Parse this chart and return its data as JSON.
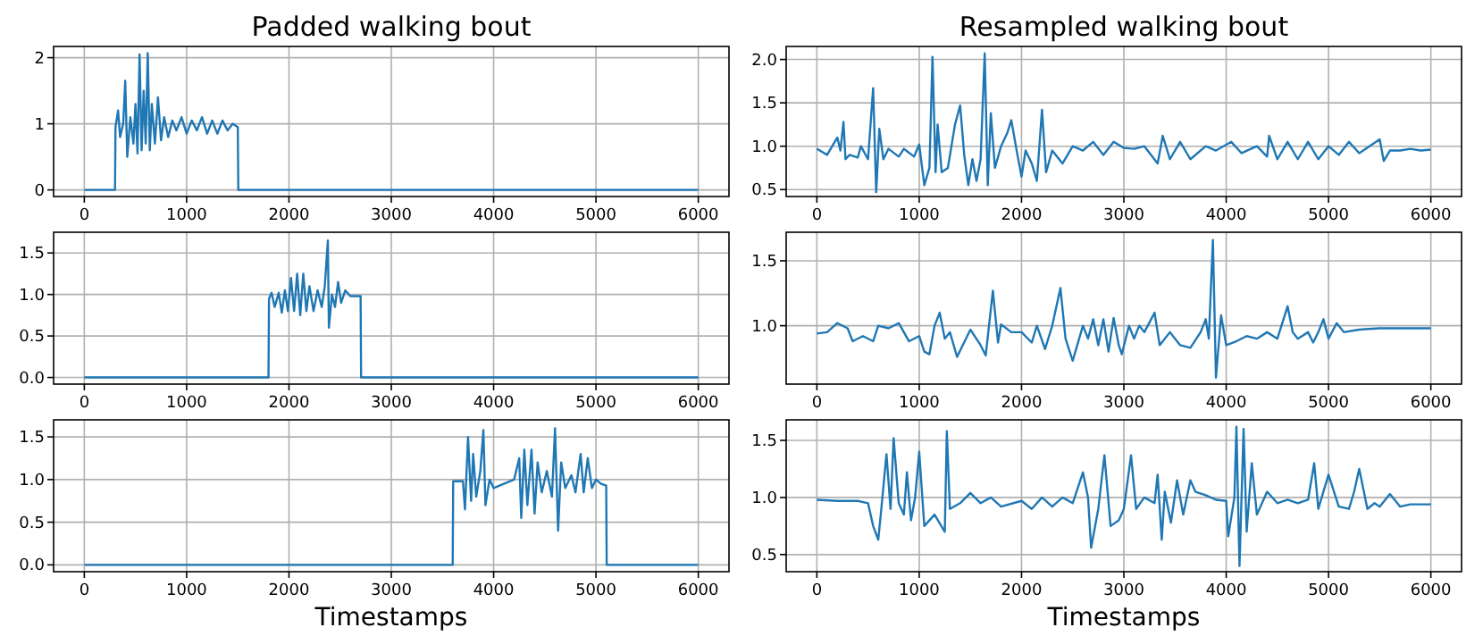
{
  "chart_data": [
    {
      "type": "line",
      "title": "Padded walking bout",
      "color": "#1f77b4",
      "grid": true,
      "xlim": [
        -300,
        6300
      ],
      "xticks": [
        0,
        1000,
        2000,
        3000,
        4000,
        5000,
        6000
      ],
      "ylim": [
        -0.1,
        2.17
      ],
      "yticks": [
        0,
        1,
        2
      ],
      "x": [
        0,
        300,
        305,
        330,
        350,
        380,
        400,
        420,
        450,
        480,
        500,
        520,
        540,
        560,
        580,
        600,
        620,
        640,
        660,
        690,
        720,
        750,
        780,
        820,
        860,
        900,
        950,
        1000,
        1050,
        1100,
        1150,
        1200,
        1250,
        1300,
        1350,
        1400,
        1450,
        1500,
        1505,
        6000
      ],
      "values": [
        0,
        0,
        0.95,
        1.2,
        0.8,
        1.0,
        1.65,
        0.5,
        1.1,
        0.7,
        1.3,
        0.55,
        2.05,
        0.6,
        1.5,
        0.7,
        2.07,
        0.6,
        1.3,
        0.7,
        1.4,
        0.75,
        1.1,
        0.8,
        1.05,
        0.9,
        1.1,
        0.85,
        1.05,
        0.9,
        1.1,
        0.85,
        1.05,
        0.85,
        1.05,
        0.9,
        1.0,
        0.95,
        0,
        0
      ]
    },
    {
      "type": "line",
      "title": "Resampled walking bout",
      "color": "#1f77b4",
      "grid": true,
      "xlim": [
        -300,
        6300
      ],
      "xticks": [
        0,
        1000,
        2000,
        3000,
        4000,
        5000,
        6000
      ],
      "ylim": [
        0.42,
        2.15
      ],
      "yticks": [
        0.5,
        {
          "value": 1,
          "label": "1.0"
        },
        1.5,
        {
          "value": 2,
          "label": "2.0"
        }
      ],
      "x": [
        0,
        100,
        200,
        230,
        260,
        280,
        320,
        400,
        430,
        500,
        550,
        580,
        610,
        650,
        700,
        800,
        850,
        950,
        1000,
        1050,
        1100,
        1130,
        1160,
        1180,
        1220,
        1280,
        1350,
        1400,
        1440,
        1480,
        1520,
        1560,
        1600,
        1640,
        1670,
        1700,
        1740,
        1800,
        1860,
        1900,
        1960,
        2000,
        2040,
        2100,
        2150,
        2200,
        2240,
        2300,
        2400,
        2500,
        2600,
        2700,
        2800,
        2900,
        3000,
        3100,
        3200,
        3330,
        3380,
        3450,
        3550,
        3650,
        3800,
        3900,
        4050,
        4150,
        4300,
        4400,
        4420,
        4500,
        4600,
        4700,
        4800,
        4900,
        5000,
        5100,
        5200,
        5300,
        5400,
        5500,
        5540,
        5600,
        5700,
        5800,
        5900,
        6000
      ],
      "values": [
        0.97,
        0.9,
        1.1,
        0.95,
        1.28,
        0.85,
        0.9,
        0.87,
        1.0,
        0.85,
        1.67,
        0.47,
        1.2,
        0.85,
        0.97,
        0.88,
        0.97,
        0.88,
        1.02,
        0.55,
        0.75,
        2.03,
        0.7,
        1.25,
        0.7,
        0.75,
        1.25,
        1.47,
        0.9,
        0.55,
        0.85,
        0.6,
        0.85,
        2.07,
        0.55,
        1.38,
        0.75,
        1.0,
        1.15,
        1.3,
        0.9,
        0.65,
        0.95,
        0.8,
        0.6,
        1.42,
        0.7,
        0.95,
        0.8,
        1.0,
        0.95,
        1.05,
        0.9,
        1.05,
        0.98,
        0.97,
        1.0,
        0.8,
        1.12,
        0.85,
        1.05,
        0.85,
        1.0,
        0.95,
        1.05,
        0.92,
        1.0,
        0.88,
        1.12,
        0.85,
        1.05,
        0.85,
        1.05,
        0.85,
        1.0,
        0.9,
        1.05,
        0.92,
        1.0,
        1.08,
        0.83,
        0.95,
        0.95,
        0.97,
        0.95,
        0.96
      ]
    },
    {
      "type": "line",
      "color": "#1f77b4",
      "grid": true,
      "xlim": [
        -300,
        6300
      ],
      "xticks": [
        0,
        1000,
        2000,
        3000,
        4000,
        5000,
        6000
      ],
      "ylim": [
        -0.08,
        1.75
      ],
      "yticks": [
        {
          "value": 0,
          "label": "0.0"
        },
        0.5,
        {
          "value": 1,
          "label": "1.0"
        },
        1.5
      ],
      "x": [
        0,
        1800,
        1805,
        1830,
        1860,
        1900,
        1930,
        1960,
        1990,
        2020,
        2050,
        2080,
        2110,
        2140,
        2170,
        2200,
        2240,
        2280,
        2320,
        2350,
        2380,
        2390,
        2420,
        2450,
        2480,
        2510,
        2550,
        2600,
        2700,
        2705,
        6000
      ],
      "values": [
        0,
        0,
        0.95,
        1.02,
        0.85,
        1.02,
        0.78,
        1.05,
        0.8,
        1.2,
        0.8,
        1.25,
        0.75,
        1.25,
        0.8,
        1.1,
        0.8,
        1.05,
        0.85,
        1.1,
        1.65,
        0.6,
        1.0,
        0.85,
        1.15,
        0.9,
        1.05,
        0.98,
        0.98,
        0,
        0
      ]
    },
    {
      "type": "line",
      "color": "#1f77b4",
      "grid": true,
      "xlim": [
        -300,
        6300
      ],
      "xticks": [
        0,
        1000,
        2000,
        3000,
        4000,
        5000,
        6000
      ],
      "ylim": [
        0.55,
        1.72
      ],
      "yticks": [
        {
          "value": 1,
          "label": "1.0"
        },
        1.5
      ],
      "x": [
        0,
        100,
        200,
        300,
        350,
        450,
        550,
        600,
        700,
        800,
        900,
        1000,
        1050,
        1100,
        1150,
        1200,
        1250,
        1300,
        1370,
        1500,
        1600,
        1650,
        1720,
        1770,
        1800,
        1900,
        2000,
        2100,
        2150,
        2230,
        2300,
        2380,
        2430,
        2500,
        2600,
        2650,
        2700,
        2750,
        2800,
        2850,
        2900,
        2950,
        2980,
        3050,
        3100,
        3150,
        3200,
        3300,
        3350,
        3450,
        3550,
        3650,
        3750,
        3800,
        3830,
        3870,
        3900,
        3950,
        4000,
        4100,
        4200,
        4300,
        4400,
        4500,
        4600,
        4650,
        4700,
        4800,
        4850,
        4900,
        4950,
        5000,
        5080,
        5150,
        5300,
        5500,
        5700,
        6000
      ],
      "values": [
        0.94,
        0.95,
        1.02,
        0.98,
        0.88,
        0.92,
        0.88,
        1.0,
        0.98,
        1.02,
        0.88,
        0.92,
        0.8,
        0.78,
        1.0,
        1.1,
        0.9,
        0.95,
        0.76,
        0.97,
        0.85,
        0.77,
        1.27,
        0.87,
        1.01,
        0.95,
        0.95,
        0.87,
        1.0,
        0.82,
        1.0,
        1.29,
        0.9,
        0.73,
        1.0,
        0.9,
        1.05,
        0.85,
        1.05,
        0.8,
        1.06,
        0.85,
        0.78,
        1.0,
        0.9,
        1.0,
        0.95,
        1.1,
        0.85,
        0.95,
        0.85,
        0.83,
        0.95,
        1.05,
        0.9,
        1.66,
        0.6,
        1.08,
        0.85,
        0.88,
        0.92,
        0.9,
        0.95,
        0.9,
        1.15,
        0.95,
        0.9,
        0.95,
        0.87,
        0.95,
        1.05,
        0.9,
        1.02,
        0.95,
        0.97,
        0.98,
        0.98,
        0.98
      ]
    },
    {
      "type": "line",
      "xlabel": "Timestamps",
      "color": "#1f77b4",
      "grid": true,
      "xlim": [
        -300,
        6300
      ],
      "xticks": [
        0,
        1000,
        2000,
        3000,
        4000,
        5000,
        6000
      ],
      "ylim": [
        -0.08,
        1.7
      ],
      "yticks": [
        {
          "value": 0,
          "label": "0.0"
        },
        0.5,
        {
          "value": 1,
          "label": "1.0"
        },
        1.5
      ],
      "x": [
        0,
        3600,
        3605,
        3700,
        3720,
        3750,
        3780,
        3800,
        3830,
        3870,
        3900,
        3920,
        3960,
        4000,
        4100,
        4200,
        4250,
        4270,
        4300,
        4330,
        4370,
        4400,
        4430,
        4470,
        4520,
        4570,
        4600,
        4630,
        4660,
        4700,
        4760,
        4800,
        4850,
        4880,
        4920,
        4960,
        5000,
        5050,
        5100,
        5105,
        6000
      ],
      "values": [
        0,
        0,
        0.98,
        0.98,
        0.65,
        1.5,
        0.75,
        1.3,
        0.8,
        1.1,
        1.58,
        0.7,
        1.0,
        0.9,
        0.95,
        1.0,
        1.25,
        0.55,
        1.35,
        0.7,
        1.35,
        0.6,
        1.2,
        0.85,
        1.1,
        0.8,
        1.6,
        0.4,
        1.2,
        0.9,
        1.05,
        0.85,
        1.3,
        0.85,
        1.25,
        0.9,
        1.0,
        0.95,
        0.93,
        0,
        0
      ]
    },
    {
      "type": "line",
      "xlabel": "Timestamps",
      "color": "#1f77b4",
      "grid": true,
      "xlim": [
        -300,
        6300
      ],
      "xticks": [
        0,
        1000,
        2000,
        3000,
        4000,
        5000,
        6000
      ],
      "ylim": [
        0.35,
        1.68
      ],
      "yticks": [
        0.5,
        {
          "value": 1,
          "label": "1.0"
        },
        1.5
      ],
      "x": [
        0,
        200,
        400,
        500,
        550,
        600,
        630,
        680,
        720,
        750,
        800,
        850,
        880,
        920,
        960,
        1000,
        1050,
        1150,
        1250,
        1270,
        1300,
        1400,
        1500,
        1600,
        1700,
        1800,
        2000,
        2100,
        2200,
        2300,
        2400,
        2500,
        2600,
        2650,
        2680,
        2750,
        2810,
        2870,
        2950,
        3000,
        3070,
        3120,
        3200,
        3300,
        3330,
        3370,
        3400,
        3460,
        3520,
        3580,
        3650,
        3700,
        3800,
        3900,
        4000,
        4020,
        4080,
        4100,
        4130,
        4170,
        4200,
        4250,
        4300,
        4400,
        4500,
        4600,
        4700,
        4800,
        4860,
        4900,
        5000,
        5100,
        5200,
        5250,
        5300,
        5380,
        5450,
        5500,
        5600,
        5700,
        5800,
        6000
      ],
      "values": [
        0.98,
        0.97,
        0.97,
        0.95,
        0.75,
        0.63,
        0.9,
        1.38,
        0.9,
        1.52,
        0.95,
        0.85,
        1.22,
        0.8,
        1.0,
        1.4,
        0.75,
        0.85,
        0.7,
        1.58,
        0.9,
        0.95,
        1.04,
        0.95,
        1.0,
        0.92,
        0.97,
        0.9,
        1.0,
        0.92,
        1.0,
        0.95,
        1.22,
        1.0,
        0.56,
        0.9,
        1.37,
        0.75,
        0.8,
        0.9,
        1.37,
        0.9,
        1.0,
        0.95,
        1.2,
        0.63,
        1.05,
        0.78,
        1.15,
        0.85,
        1.15,
        1.05,
        1.02,
        0.98,
        0.97,
        0.66,
        1.0,
        1.62,
        0.4,
        1.6,
        0.7,
        1.3,
        0.85,
        1.05,
        0.95,
        0.98,
        0.95,
        0.98,
        1.3,
        0.9,
        1.2,
        0.92,
        0.9,
        1.05,
        1.25,
        0.9,
        0.95,
        0.92,
        1.03,
        0.92,
        0.94,
        0.94
      ]
    }
  ]
}
